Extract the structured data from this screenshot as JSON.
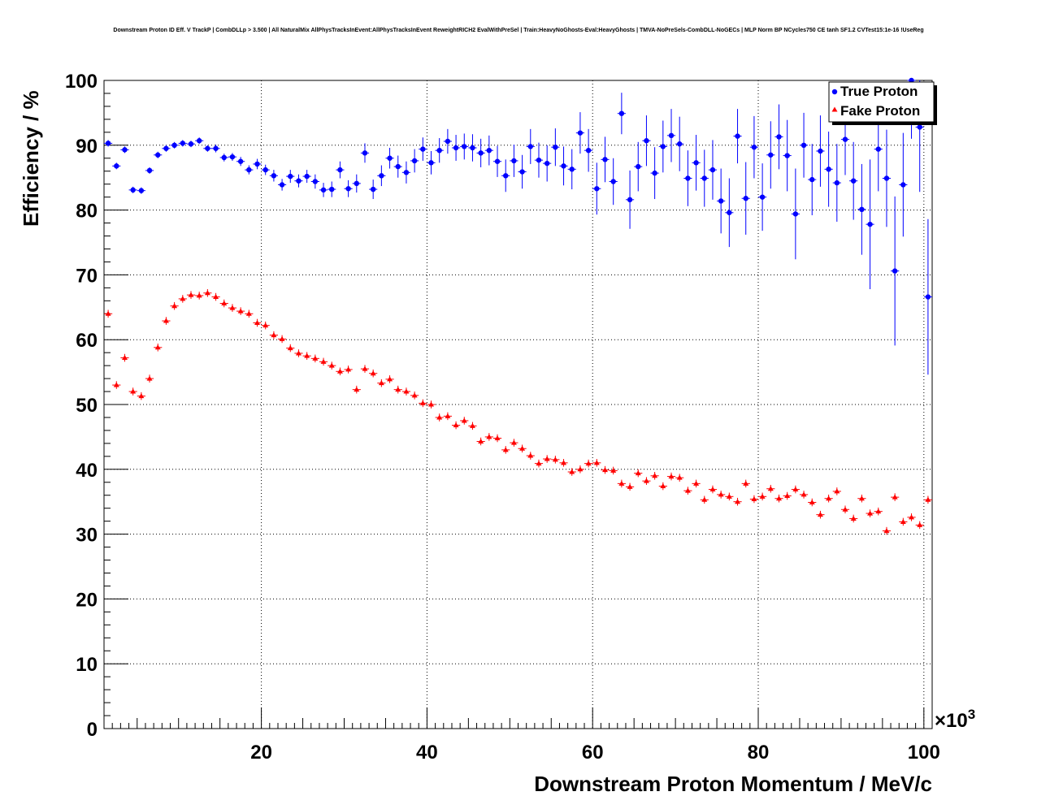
{
  "title": "Downstream Proton ID Eff. V TrackP | CombDLLp > 3.500 | All NaturalMix AllPhysTracksInEvent:AllPhysTracksInEvent ReweightRICH2 EvalWithPreSel | Train:HeavyNoGhosts-Eval:HeavyGhosts | TMVA-NoPreSels-CombDLL-NoGECs | MLP Norm BP NCycles750 CE tanh SF1.2 CVTest15:1e-16 !UseReg",
  "chart_data": {
    "type": "scatter",
    "title": "Downstream Proton ID Eff. V TrackP | CombDLLp > 3.500 | All NaturalMix AllPhysTracksInEvent:AllPhysTracksInEvent ReweightRICH2 EvalWithPreSel | Train:HeavyNoGhosts-Eval:HeavyGhosts | TMVA-NoPreSels-CombDLL-NoGECs | MLP Norm BP NCycles750 CE tanh SF1.2 CVTest15:1e-16 !UseReg",
    "xlabel": "Downstream Proton Momentum / MeV/c",
    "ylabel": "Efficiency / %",
    "x_multiplier": "×10",
    "x_multiplier_exp": "3",
    "xlim": [
      1,
      101
    ],
    "ylim": [
      0,
      100
    ],
    "xticks": [
      20,
      40,
      60,
      80,
      100
    ],
    "yticks": [
      0,
      10,
      20,
      30,
      40,
      50,
      60,
      70,
      80,
      90,
      100
    ],
    "grid": true,
    "legend_position": "top-right",
    "series": [
      {
        "name": "True Proton",
        "color": "#0000ff",
        "marker": "circle",
        "x": [
          1.5,
          2.5,
          3.5,
          4.5,
          5.5,
          6.5,
          7.5,
          8.5,
          9.5,
          10.5,
          11.5,
          12.5,
          13.5,
          14.5,
          15.5,
          16.5,
          17.5,
          18.5,
          19.5,
          20.5,
          21.5,
          22.5,
          23.5,
          24.5,
          25.5,
          26.5,
          27.5,
          28.5,
          29.5,
          30.5,
          31.5,
          32.5,
          33.5,
          34.5,
          35.5,
          36.5,
          37.5,
          38.5,
          39.5,
          40.5,
          41.5,
          42.5,
          43.5,
          44.5,
          45.5,
          46.5,
          47.5,
          48.5,
          49.5,
          50.5,
          51.5,
          52.5,
          53.5,
          54.5,
          55.5,
          56.5,
          57.5,
          58.5,
          59.5,
          60.5,
          61.5,
          62.5,
          63.5,
          64.5,
          65.5,
          66.5,
          67.5,
          68.5,
          69.5,
          70.5,
          71.5,
          72.5,
          73.5,
          74.5,
          75.5,
          76.5,
          77.5,
          78.5,
          79.5,
          80.5,
          81.5,
          82.5,
          83.5,
          84.5,
          85.5,
          86.5,
          87.5,
          88.5,
          89.5,
          90.5,
          91.5,
          92.5,
          93.5,
          94.5,
          95.5,
          96.5,
          97.5,
          98.5,
          99.5,
          100.5
        ],
        "y": [
          90.3,
          86.8,
          89.3,
          83.1,
          83.0,
          86.1,
          88.5,
          89.5,
          90.0,
          90.3,
          90.2,
          90.7,
          89.5,
          89.5,
          88.1,
          88.2,
          87.5,
          86.2,
          87.1,
          86.2,
          85.3,
          83.9,
          85.2,
          84.5,
          85.2,
          84.4,
          83.1,
          83.2,
          86.2,
          83.3,
          84.1,
          88.8,
          83.2,
          85.3,
          88.0,
          86.7,
          85.8,
          87.6,
          89.4,
          87.3,
          89.2,
          90.6,
          89.6,
          89.8,
          89.6,
          88.8,
          89.2,
          87.5,
          85.3,
          87.6,
          85.9,
          89.8,
          87.7,
          87.2,
          89.7,
          86.8,
          86.3,
          91.9,
          89.2,
          83.3,
          87.8,
          84.4,
          94.9,
          81.6,
          86.7,
          90.7,
          85.7,
          89.8,
          91.5,
          90.2,
          84.9,
          87.3,
          84.9,
          86.2,
          81.4,
          79.6,
          91.4,
          81.8,
          89.7,
          82.0,
          88.5,
          91.3,
          88.4,
          79.4,
          90.0,
          84.7,
          89.1,
          86.3,
          84.2,
          90.9,
          84.5,
          80.1,
          77.8,
          89.4,
          84.9,
          70.6,
          83.9,
          100.0,
          92.8,
          66.6
        ],
        "y_err": [
          0.5,
          0.5,
          0.5,
          0.5,
          0.5,
          0.5,
          0.5,
          0.5,
          0.5,
          0.5,
          0.5,
          0.5,
          0.5,
          0.6,
          0.6,
          0.6,
          0.7,
          0.7,
          0.8,
          0.8,
          0.9,
          0.9,
          1.0,
          1.0,
          1.0,
          1.1,
          1.1,
          1.2,
          1.3,
          1.3,
          1.4,
          1.5,
          1.5,
          1.6,
          1.6,
          1.7,
          1.7,
          1.8,
          1.8,
          1.8,
          1.9,
          1.9,
          2.0,
          2.0,
          2.1,
          2.2,
          2.3,
          2.4,
          2.5,
          2.5,
          2.6,
          2.7,
          2.7,
          2.8,
          2.9,
          3.0,
          3.1,
          3.2,
          3.3,
          4.0,
          3.5,
          3.6,
          3.2,
          4.5,
          3.8,
          3.9,
          4.0,
          4.0,
          4.1,
          4.2,
          4.3,
          4.3,
          4.4,
          4.6,
          5.0,
          5.3,
          4.2,
          5.6,
          4.8,
          5.2,
          5.2,
          5.0,
          5.5,
          7.0,
          5.0,
          5.5,
          5.5,
          5.8,
          6.0,
          5.5,
          6.0,
          7.0,
          10.0,
          6.5,
          7.5,
          11.5,
          8.0,
          9.0,
          10.0,
          12.0
        ]
      },
      {
        "name": "Fake Proton",
        "color": "#ff0000",
        "marker": "triangle",
        "x": [
          1.5,
          2.5,
          3.5,
          4.5,
          5.5,
          6.5,
          7.5,
          8.5,
          9.5,
          10.5,
          11.5,
          12.5,
          13.5,
          14.5,
          15.5,
          16.5,
          17.5,
          18.5,
          19.5,
          20.5,
          21.5,
          22.5,
          23.5,
          24.5,
          25.5,
          26.5,
          27.5,
          28.5,
          29.5,
          30.5,
          31.5,
          32.5,
          33.5,
          34.5,
          35.5,
          36.5,
          37.5,
          38.5,
          39.5,
          40.5,
          41.5,
          42.5,
          43.5,
          44.5,
          45.5,
          46.5,
          47.5,
          48.5,
          49.5,
          50.5,
          51.5,
          52.5,
          53.5,
          54.5,
          55.5,
          56.5,
          57.5,
          58.5,
          59.5,
          60.5,
          61.5,
          62.5,
          63.5,
          64.5,
          65.5,
          66.5,
          67.5,
          68.5,
          69.5,
          70.5,
          71.5,
          72.5,
          73.5,
          74.5,
          75.5,
          76.5,
          77.5,
          78.5,
          79.5,
          80.5,
          81.5,
          82.5,
          83.5,
          84.5,
          85.5,
          86.5,
          87.5,
          88.5,
          89.5,
          90.5,
          91.5,
          92.5,
          93.5,
          94.5,
          95.5,
          96.5,
          97.5,
          98.5,
          99.5,
          100.5
        ],
        "y": [
          64.0,
          53.0,
          57.2,
          52.0,
          51.3,
          54.0,
          58.8,
          62.9,
          65.2,
          66.3,
          66.9,
          66.8,
          67.2,
          66.6,
          65.6,
          64.9,
          64.4,
          64.0,
          62.6,
          62.2,
          60.7,
          60.1,
          58.7,
          57.9,
          57.5,
          57.1,
          56.6,
          56.0,
          55.1,
          55.4,
          52.3,
          55.5,
          54.8,
          53.3,
          53.9,
          52.3,
          52.0,
          51.4,
          50.2,
          50.0,
          48.0,
          48.2,
          46.8,
          47.5,
          46.7,
          44.3,
          45.0,
          44.8,
          43.0,
          44.1,
          43.2,
          42.1,
          40.9,
          41.6,
          41.5,
          41.0,
          39.6,
          40.0,
          40.9,
          41.0,
          39.9,
          39.8,
          37.8,
          37.3,
          39.4,
          38.2,
          39.0,
          37.4,
          38.9,
          38.7,
          36.7,
          37.8,
          35.3,
          36.9,
          36.1,
          35.8,
          35.0,
          37.8,
          35.4,
          35.8,
          37.0,
          35.5,
          35.9,
          36.9,
          36.1,
          34.9,
          33.0,
          35.5,
          36.6,
          33.8,
          32.4,
          35.5,
          33.2,
          33.5,
          30.5,
          35.7,
          31.9,
          32.6,
          31.4,
          35.3
        ]
      }
    ]
  }
}
